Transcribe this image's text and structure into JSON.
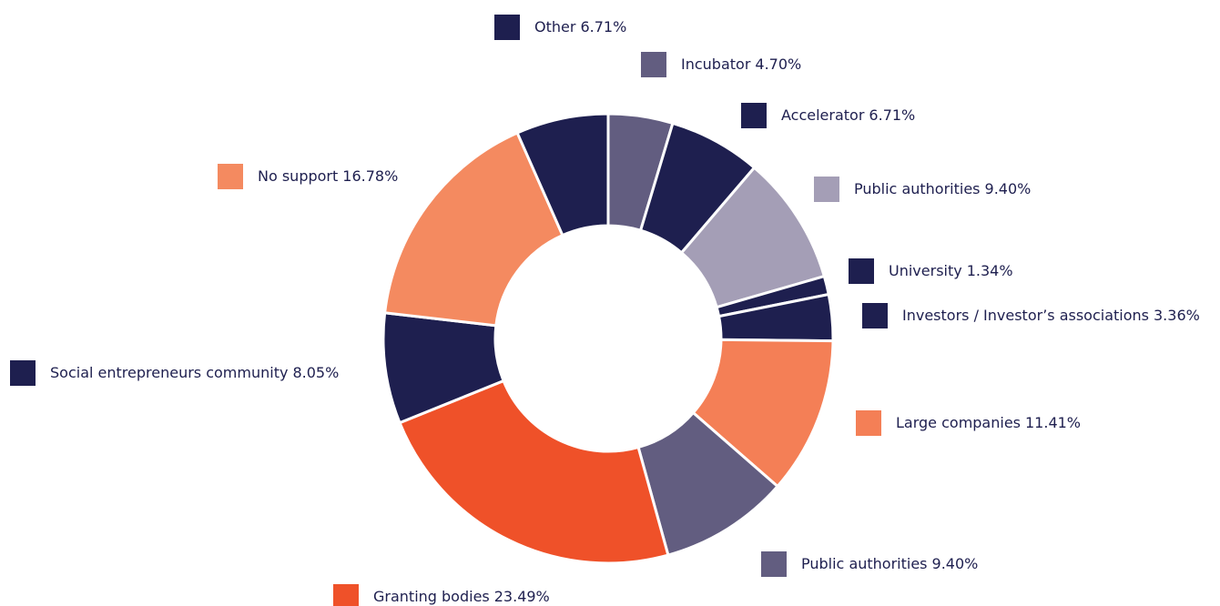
{
  "chart_data": {
    "type": "pie",
    "categories": [
      "Incubator",
      "Accelerator",
      "Public authorities",
      "University",
      "Investors / Investor’s associations",
      "Large companies",
      "Public authorities",
      "Granting bodies",
      "Social entrepreneurs community",
      "No support",
      "Other"
    ],
    "values": [
      4.7,
      6.71,
      9.4,
      1.34,
      3.36,
      11.41,
      9.4,
      23.49,
      8.05,
      16.78,
      6.71
    ],
    "value_labels": [
      "4.70%",
      "6.71%",
      "9.40%",
      "1.34%",
      "3.36%",
      "11.41%",
      "9.40%",
      "23.49%",
      "8.05%",
      "16.78%",
      "6.71%"
    ],
    "colors": [
      "#625d80",
      "#1e1f4f",
      "#a49eb6",
      "#1e1f4f",
      "#1e1f4f",
      "#f47f56",
      "#625d80",
      "#ef5129",
      "#1e1f4f",
      "#f48a60",
      "#1e1f4f"
    ]
  }
}
